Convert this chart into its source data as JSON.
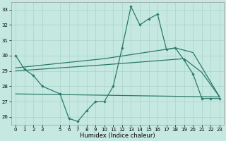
{
  "bg_color": "#c5e8e0",
  "grid_color": "#aad4c8",
  "line_color": "#2a7a6a",
  "xlabel": "Humidex (Indice chaleur)",
  "ylim": [
    25.5,
    33.5
  ],
  "xlim": [
    -0.5,
    23.5
  ],
  "yticks": [
    26,
    27,
    28,
    29,
    30,
    31,
    32,
    33
  ],
  "xticks": [
    0,
    1,
    2,
    3,
    5,
    6,
    7,
    8,
    9,
    10,
    11,
    12,
    13,
    14,
    15,
    16,
    17,
    18,
    19,
    20,
    21,
    22,
    23
  ],
  "line1_x": [
    0,
    1,
    2,
    3,
    5,
    6,
    7,
    8,
    9,
    10,
    11,
    12,
    13,
    14,
    15,
    16,
    17,
    18,
    19,
    20,
    21,
    22,
    23
  ],
  "line1_y": [
    30.0,
    29.1,
    28.7,
    28.0,
    27.5,
    25.9,
    25.7,
    26.4,
    27.0,
    27.0,
    28.0,
    30.5,
    33.2,
    32.0,
    32.4,
    32.7,
    30.4,
    30.5,
    29.7,
    28.8,
    27.2,
    27.2,
    27.2
  ],
  "line2_x": [
    0,
    23
  ],
  "line2_y": [
    27.5,
    27.3
  ],
  "line3_x": [
    0,
    10,
    19,
    21,
    23
  ],
  "line3_y": [
    29.0,
    29.4,
    29.8,
    28.9,
    27.3
  ],
  "line4_x": [
    0,
    10,
    18,
    20,
    23
  ],
  "line4_y": [
    29.2,
    29.8,
    30.5,
    30.2,
    27.3
  ]
}
